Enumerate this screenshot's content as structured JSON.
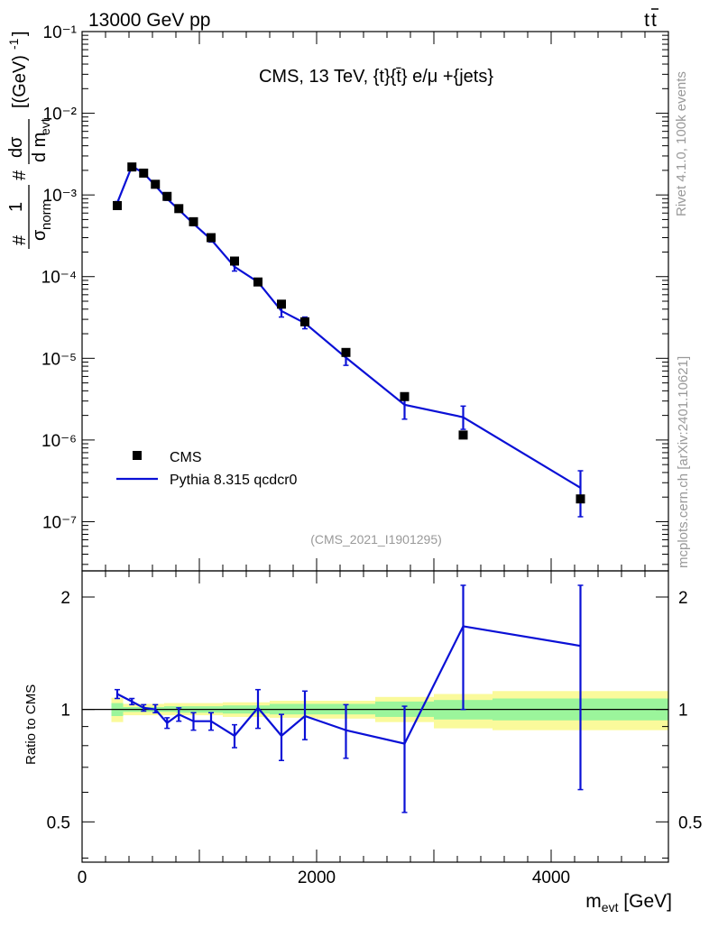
{
  "header": {
    "beam": "13000 GeV pp",
    "process_t": "t",
    "process_tbar": "t",
    "side_rivet": "Rivet 4.1.0,  100k events",
    "side_site": "mcplots.cern.ch [arXiv:2401.10621]"
  },
  "chart_data": [
    {
      "type": "scatter",
      "panel": "main",
      "title": "CMS, 13 TeV, {t}{t̄} e/μ +{jets}",
      "watermark": "(CMS_2021_I1901295)",
      "ylabel": "# 1/σnorm # dσ/d mevt [(GeV)⁻¹]",
      "yscale": "log",
      "ylim": [
        2.5e-08,
        0.1
      ],
      "xlim": [
        0,
        5000
      ],
      "ytick_labels": [
        "10⁻⁷",
        "10⁻⁶",
        "10⁻⁵",
        "10⁻⁴",
        "10⁻³",
        "10⁻²",
        "10⁻¹"
      ],
      "ytick_values": [
        1e-07,
        1e-06,
        1e-05,
        0.0001,
        0.001,
        0.01,
        0.1
      ],
      "legend": {
        "position": "bottom-left",
        "entries": [
          "CMS",
          "Pythia 8.315 qcdcr0"
        ]
      },
      "series": [
        {
          "name": "CMS",
          "color": "#000000",
          "x": [
            300,
            425,
            525,
            625,
            725,
            825,
            950,
            1100,
            1300,
            1500,
            1700,
            1900,
            2250,
            2750,
            3250,
            4250
          ],
          "y": [
            0.00074,
            0.0022,
            0.00185,
            0.00135,
            0.00096,
            0.00068,
            0.00047,
            0.0003,
            0.000155,
            8.6e-05,
            4.6e-05,
            2.8e-05,
            1.18e-05,
            3.4e-06,
            1.15e-06,
            1.9e-07
          ]
        },
        {
          "name": "Pythia 8.315 qcdcr0",
          "color": "#0a10d6",
          "x": [
            300,
            425,
            525,
            625,
            725,
            825,
            950,
            1100,
            1300,
            1500,
            1700,
            1900,
            2250,
            2750,
            3250,
            4250
          ],
          "y": [
            0.0008,
            0.00225,
            0.00185,
            0.0013,
            0.0009,
            0.00066,
            0.000445,
            0.000285,
            0.000132,
            8.6e-05,
            3.8e-05,
            2.7e-05,
            1.02e-05,
            2.7e-06,
            1.9e-06,
            2.6e-07
          ],
          "ylow": [
            0.00077,
            0.00218,
            0.0018,
            0.00125,
            0.00086,
            0.00062,
            0.00042,
            0.000265,
            0.000117,
            7.9e-05,
            3.2e-05,
            2.3e-05,
            8.2e-06,
            1.8e-06,
            1.35e-06,
            1.15e-07
          ],
          "yhigh": [
            0.00083,
            0.00232,
            0.0019,
            0.00135,
            0.00094,
            0.0007,
            0.00047,
            0.000305,
            0.000148,
            9.3e-05,
            4.5e-05,
            3.2e-05,
            1.25e-05,
            3.7e-06,
            2.6e-06,
            4.2e-07
          ]
        }
      ]
    },
    {
      "type": "line",
      "panel": "ratio",
      "ylabel": "Ratio to CMS",
      "xlabel_main": "m",
      "xlabel_sub": "evt",
      "xlabel_unit": " [GeV]",
      "yscale": "log",
      "ylim": [
        0.39,
        2.35
      ],
      "xlim": [
        0,
        5000
      ],
      "ytick_labels": [
        "0.5",
        "1",
        "2"
      ],
      "ytick_values": [
        0.5,
        1,
        2
      ],
      "xtick_labels": [
        "0",
        "2000",
        "4000"
      ],
      "xtick_values": [
        0,
        2000,
        4000
      ],
      "uncertainty_bands": [
        {
          "xlo": 250,
          "xhi": 350,
          "inner": [
            0.96,
            1.04
          ],
          "outer": [
            0.925,
            1.075
          ]
        },
        {
          "xlo": 350,
          "xhi": 500,
          "inner": [
            0.985,
            1.015
          ],
          "outer": [
            0.965,
            1.035
          ]
        },
        {
          "xlo": 500,
          "xhi": 600,
          "inner": [
            0.985,
            1.015
          ],
          "outer": [
            0.965,
            1.035
          ]
        },
        {
          "xlo": 600,
          "xhi": 700,
          "inner": [
            0.985,
            1.015
          ],
          "outer": [
            0.965,
            1.035
          ]
        },
        {
          "xlo": 700,
          "xhi": 800,
          "inner": [
            0.985,
            1.02
          ],
          "outer": [
            0.965,
            1.04
          ]
        },
        {
          "xlo": 800,
          "xhi": 900,
          "inner": [
            0.98,
            1.02
          ],
          "outer": [
            0.965,
            1.04
          ]
        },
        {
          "xlo": 900,
          "xhi": 1000,
          "inner": [
            0.98,
            1.02
          ],
          "outer": [
            0.965,
            1.04
          ]
        },
        {
          "xlo": 1000,
          "xhi": 1200,
          "inner": [
            0.98,
            1.02
          ],
          "outer": [
            0.965,
            1.04
          ]
        },
        {
          "xlo": 1200,
          "xhi": 1400,
          "inner": [
            0.975,
            1.025
          ],
          "outer": [
            0.955,
            1.045
          ]
        },
        {
          "xlo": 1400,
          "xhi": 1600,
          "inner": [
            0.975,
            1.025
          ],
          "outer": [
            0.955,
            1.045
          ]
        },
        {
          "xlo": 1600,
          "xhi": 1800,
          "inner": [
            0.97,
            1.035
          ],
          "outer": [
            0.95,
            1.055
          ]
        },
        {
          "xlo": 1800,
          "xhi": 2000,
          "inner": [
            0.97,
            1.035
          ],
          "outer": [
            0.95,
            1.055
          ]
        },
        {
          "xlo": 2000,
          "xhi": 2500,
          "inner": [
            0.97,
            1.035
          ],
          "outer": [
            0.945,
            1.055
          ]
        },
        {
          "xlo": 2500,
          "xhi": 3000,
          "inner": [
            0.955,
            1.05
          ],
          "outer": [
            0.925,
            1.08
          ]
        },
        {
          "xlo": 3000,
          "xhi": 3500,
          "inner": [
            0.94,
            1.06
          ],
          "outer": [
            0.89,
            1.1
          ]
        },
        {
          "xlo": 3500,
          "xhi": 5000,
          "inner": [
            0.935,
            1.07
          ],
          "outer": [
            0.88,
            1.12
          ]
        }
      ],
      "series": [
        {
          "name": "Pythia 8.315 qcdcr0 / CMS",
          "color": "#0a10d6",
          "x": [
            300,
            425,
            525,
            625,
            725,
            825,
            950,
            1100,
            1300,
            1500,
            1700,
            1900,
            2250,
            2750,
            3250,
            4250
          ],
          "y": [
            1.1,
            1.05,
            1.01,
            1.0,
            0.92,
            0.97,
            0.93,
            0.93,
            0.85,
            1.01,
            0.85,
            0.96,
            0.88,
            0.81,
            1.67,
            1.48
          ],
          "ylow": [
            1.07,
            1.03,
            0.99,
            0.98,
            0.89,
            0.93,
            0.88,
            0.88,
            0.79,
            0.89,
            0.73,
            0.83,
            0.74,
            0.53,
            1.0,
            0.61
          ],
          "yhigh": [
            1.13,
            1.07,
            1.03,
            1.03,
            0.95,
            1.01,
            0.98,
            0.98,
            0.91,
            1.13,
            0.97,
            1.12,
            1.03,
            1.02,
            2.15,
            2.15
          ]
        }
      ]
    }
  ],
  "colors": {
    "data": "#000000",
    "mc": "#0a10d6",
    "band_inner": "#9bf59b",
    "band_outer": "#fafa9b",
    "gray": "#999999"
  }
}
